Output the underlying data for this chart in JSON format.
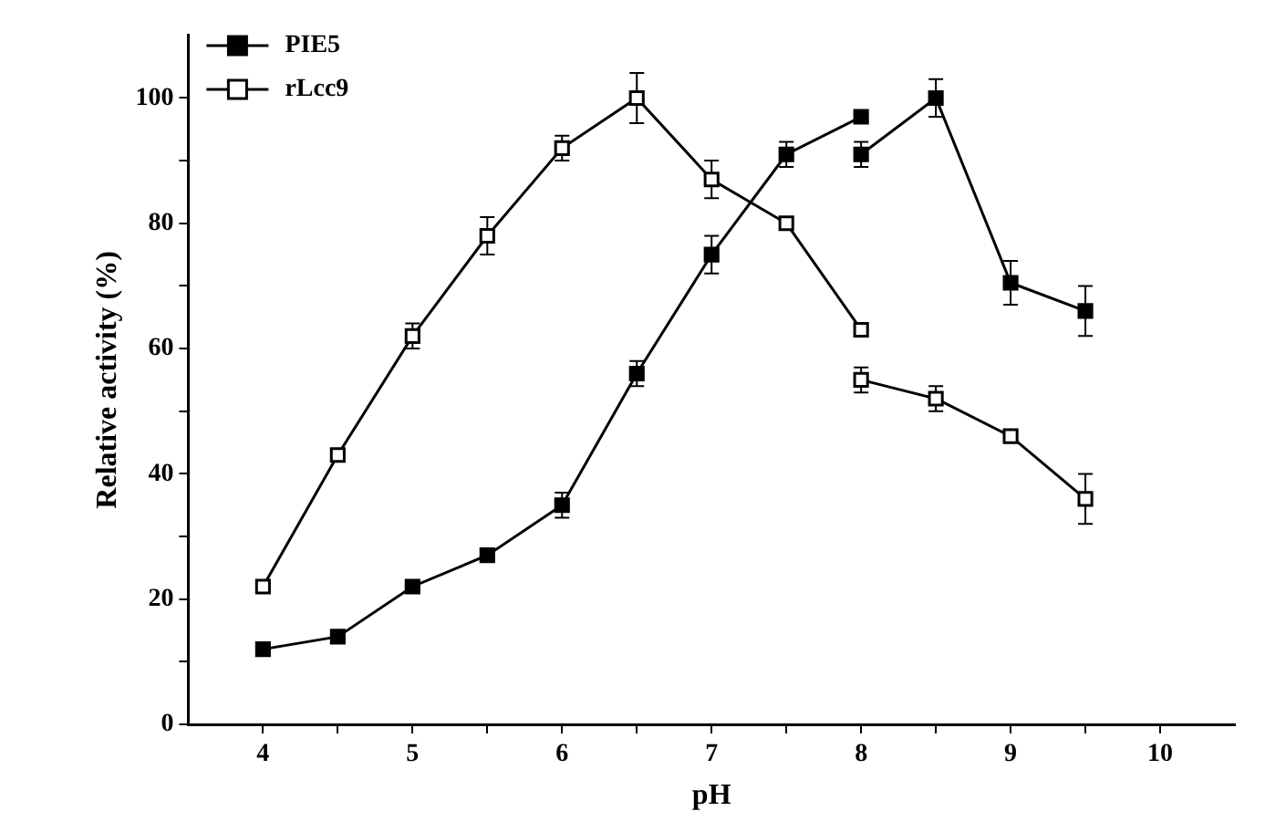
{
  "chart_data": {
    "type": "line",
    "xlabel": "pH",
    "ylabel": "Relative activity (%)",
    "xlim": [
      3.5,
      10.5
    ],
    "xticks": [
      4,
      {
        "value": 4.5,
        "label": null
      },
      5,
      {
        "value": 5.5,
        "label": null
      },
      6,
      {
        "value": 6.5,
        "label": null
      },
      7,
      {
        "value": 7.5,
        "label": null
      },
      8,
      {
        "value": 8.5,
        "label": null
      },
      9,
      {
        "value": 9.5,
        "label": null
      },
      10
    ],
    "ylim": [
      0,
      110
    ],
    "yticks": [
      0,
      {
        "value": 10,
        "label": null
      },
      20,
      {
        "value": 30,
        "label": null
      },
      40,
      {
        "value": 50,
        "label": null
      },
      60,
      {
        "value": 70,
        "label": null
      },
      80,
      {
        "value": 90,
        "label": null
      },
      100
    ],
    "grid": false,
    "legend": "top left",
    "line_style": "solid",
    "series": [
      {
        "name": "PIE5",
        "color": "#000000",
        "marker": "square",
        "x": [
          4,
          4.5,
          5,
          5.5,
          6,
          6.5,
          7,
          7.5,
          8,
          8,
          8.5,
          9,
          9.5
        ],
        "values": [
          12,
          14,
          22,
          27,
          35,
          56,
          75,
          91,
          97,
          91,
          100,
          70.5,
          66
        ],
        "errors": [
          null,
          null,
          null,
          null,
          2,
          2,
          3,
          2,
          null,
          2,
          3,
          3.5,
          4
        ]
      },
      {
        "name": "rLcc9",
        "color": "#000000",
        "marker": "square",
        "x": [
          4,
          4.5,
          5,
          5.5,
          6,
          6.5,
          7,
          7.5,
          8,
          8,
          8.5,
          9,
          9.5
        ],
        "values": [
          22,
          43,
          62,
          78,
          92,
          100,
          87,
          80,
          63,
          55,
          52,
          46,
          36
        ],
        "errors": [
          null,
          null,
          2,
          3,
          2,
          4,
          3,
          null,
          null,
          2,
          2,
          null,
          4
        ]
      }
    ]
  }
}
